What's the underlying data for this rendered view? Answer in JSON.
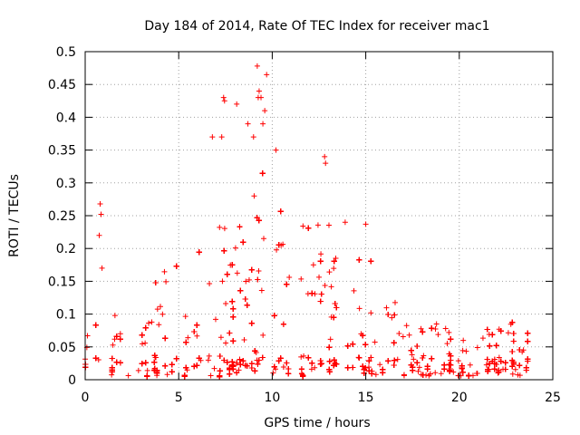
{
  "chart_data": {
    "type": "scatter",
    "title": "Day 184 of 2014, Rate Of TEC Index for receiver mac1",
    "xlabel": "GPS time / hours",
    "ylabel": "ROTI / TECUs",
    "xlim": [
      0,
      25
    ],
    "ylim": [
      0,
      0.5
    ],
    "xticks": [
      0,
      5,
      10,
      15,
      20,
      25
    ],
    "yticks": [
      0,
      0.05,
      0.1,
      0.15,
      0.2,
      0.25,
      0.3,
      0.35,
      0.4,
      0.45,
      0.5
    ],
    "x_tick_labels": [
      "0",
      "5",
      "10",
      "15",
      "20",
      "25"
    ],
    "y_tick_labels": [
      "0",
      "0.05",
      "0.1",
      "0.15",
      "0.2",
      "0.25",
      "0.3",
      "0.35",
      "0.4",
      "0.45",
      "0.5"
    ],
    "grid": true,
    "marker": "+",
    "color": "#ff0000",
    "x_range_observed": [
      0,
      23.8
    ],
    "envelope": {
      "description": "approximate upper envelope of ROTI values versus hour",
      "hours": [
        0,
        1,
        2,
        3,
        4,
        5,
        6,
        7,
        8,
        9,
        10,
        11,
        12,
        13,
        14,
        15,
        16,
        17,
        18,
        19,
        20,
        21,
        22,
        23,
        23.8
      ],
      "roti": [
        0.06,
        0.1,
        0.1,
        0.12,
        0.15,
        0.19,
        0.2,
        0.24,
        0.27,
        0.32,
        0.3,
        0.24,
        0.23,
        0.25,
        0.17,
        0.19,
        0.14,
        0.11,
        0.07,
        0.09,
        0.06,
        0.07,
        0.1,
        0.11,
        0.07
      ]
    },
    "outliers": [
      {
        "x": 0.8,
        "y": 0.268
      },
      {
        "x": 0.85,
        "y": 0.252
      },
      {
        "x": 0.75,
        "y": 0.22
      },
      {
        "x": 0.9,
        "y": 0.17
      },
      {
        "x": 6.8,
        "y": 0.37
      },
      {
        "x": 7.3,
        "y": 0.37
      },
      {
        "x": 7.4,
        "y": 0.43
      },
      {
        "x": 7.45,
        "y": 0.425
      },
      {
        "x": 8.1,
        "y": 0.42
      },
      {
        "x": 8.7,
        "y": 0.39
      },
      {
        "x": 9.2,
        "y": 0.478
      },
      {
        "x": 9.7,
        "y": 0.465
      },
      {
        "x": 9.3,
        "y": 0.44
      },
      {
        "x": 9.25,
        "y": 0.43
      },
      {
        "x": 9.4,
        "y": 0.43
      },
      {
        "x": 9.6,
        "y": 0.41
      },
      {
        "x": 9.5,
        "y": 0.39
      },
      {
        "x": 9.0,
        "y": 0.37
      },
      {
        "x": 10.2,
        "y": 0.35
      },
      {
        "x": 12.8,
        "y": 0.34
      },
      {
        "x": 12.85,
        "y": 0.33
      },
      {
        "x": 13.9,
        "y": 0.24
      },
      {
        "x": 15.0,
        "y": 0.237
      }
    ]
  }
}
